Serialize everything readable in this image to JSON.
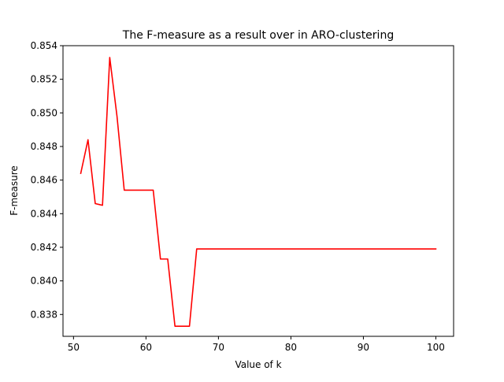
{
  "chart_data": {
    "type": "line",
    "title": "The F-measure as a result over in ARO-clustering",
    "xlabel": "Value of k",
    "ylabel": "F-measure",
    "xlim": [
      48.55,
      102.45
    ],
    "ylim": [
      0.8367,
      0.854
    ],
    "xticks": [
      50,
      60,
      70,
      80,
      90,
      100
    ],
    "xtick_labels": [
      "50",
      "60",
      "70",
      "80",
      "90",
      "100"
    ],
    "yticks": [
      0.838,
      0.84,
      0.842,
      0.844,
      0.846,
      0.848,
      0.85,
      0.852,
      0.854
    ],
    "ytick_labels": [
      "0.838",
      "0.840",
      "0.842",
      "0.844",
      "0.846",
      "0.848",
      "0.850",
      "0.852",
      "0.854"
    ],
    "grid": false,
    "series": [
      {
        "name": "F-measure",
        "color": "#ff0000",
        "x": [
          51,
          52,
          53,
          54,
          55,
          56,
          57,
          58,
          59,
          60,
          61,
          62,
          63,
          64,
          65,
          66,
          67,
          68,
          69,
          70,
          75,
          80,
          85,
          90,
          95,
          100
        ],
        "values": [
          0.8464,
          0.8484,
          0.8446,
          0.8445,
          0.8533,
          0.8498,
          0.8454,
          0.8454,
          0.8454,
          0.8454,
          0.8454,
          0.8413,
          0.8413,
          0.8373,
          0.8373,
          0.8373,
          0.8419,
          0.8419,
          0.8419,
          0.8419,
          0.8419,
          0.8419,
          0.8419,
          0.8419,
          0.8419,
          0.8419
        ]
      }
    ]
  }
}
